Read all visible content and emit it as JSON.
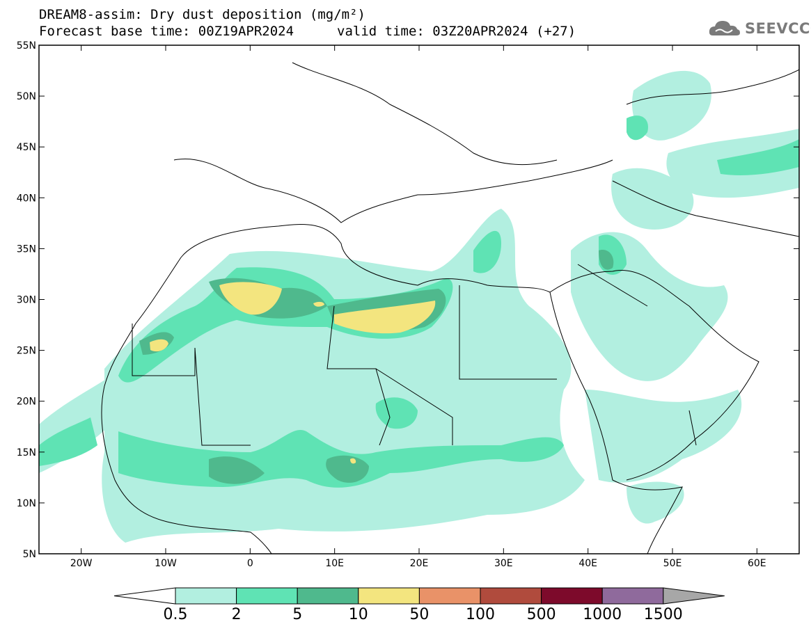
{
  "title": {
    "line1": "DREAM8-assim: Dry dust deposition (mg/m²)",
    "line2_base": "Forecast base time: 00Z19APR2024",
    "line2_valid": "valid time: 03Z20APR2024 (+27)"
  },
  "logo": {
    "text": "SEEVCCC",
    "icon": "cloud-icon"
  },
  "map": {
    "projection": "lat-lon",
    "lon_range": [
      -25,
      65
    ],
    "lat_range": [
      5,
      55
    ],
    "lat_ticks": [
      "5N",
      "10N",
      "15N",
      "20N",
      "25N",
      "30N",
      "35N",
      "40N",
      "45N",
      "50N",
      "55N"
    ],
    "lon_ticks": [
      "20W",
      "10W",
      "0",
      "10E",
      "20E",
      "30E",
      "40E",
      "50E",
      "60E"
    ]
  },
  "legend": {
    "labels": [
      "0.5",
      "2",
      "5",
      "10",
      "50",
      "100",
      "500",
      "1000",
      "1500"
    ],
    "colors": [
      "#b2efe0",
      "#5fe3b4",
      "#4fb98d",
      "#f3e57f",
      "#e99268",
      "#b04b3d",
      "#7d0a2b",
      "#8f6a9c"
    ],
    "over_color": "#a7a7a7",
    "under_color": "#ffffff"
  }
}
